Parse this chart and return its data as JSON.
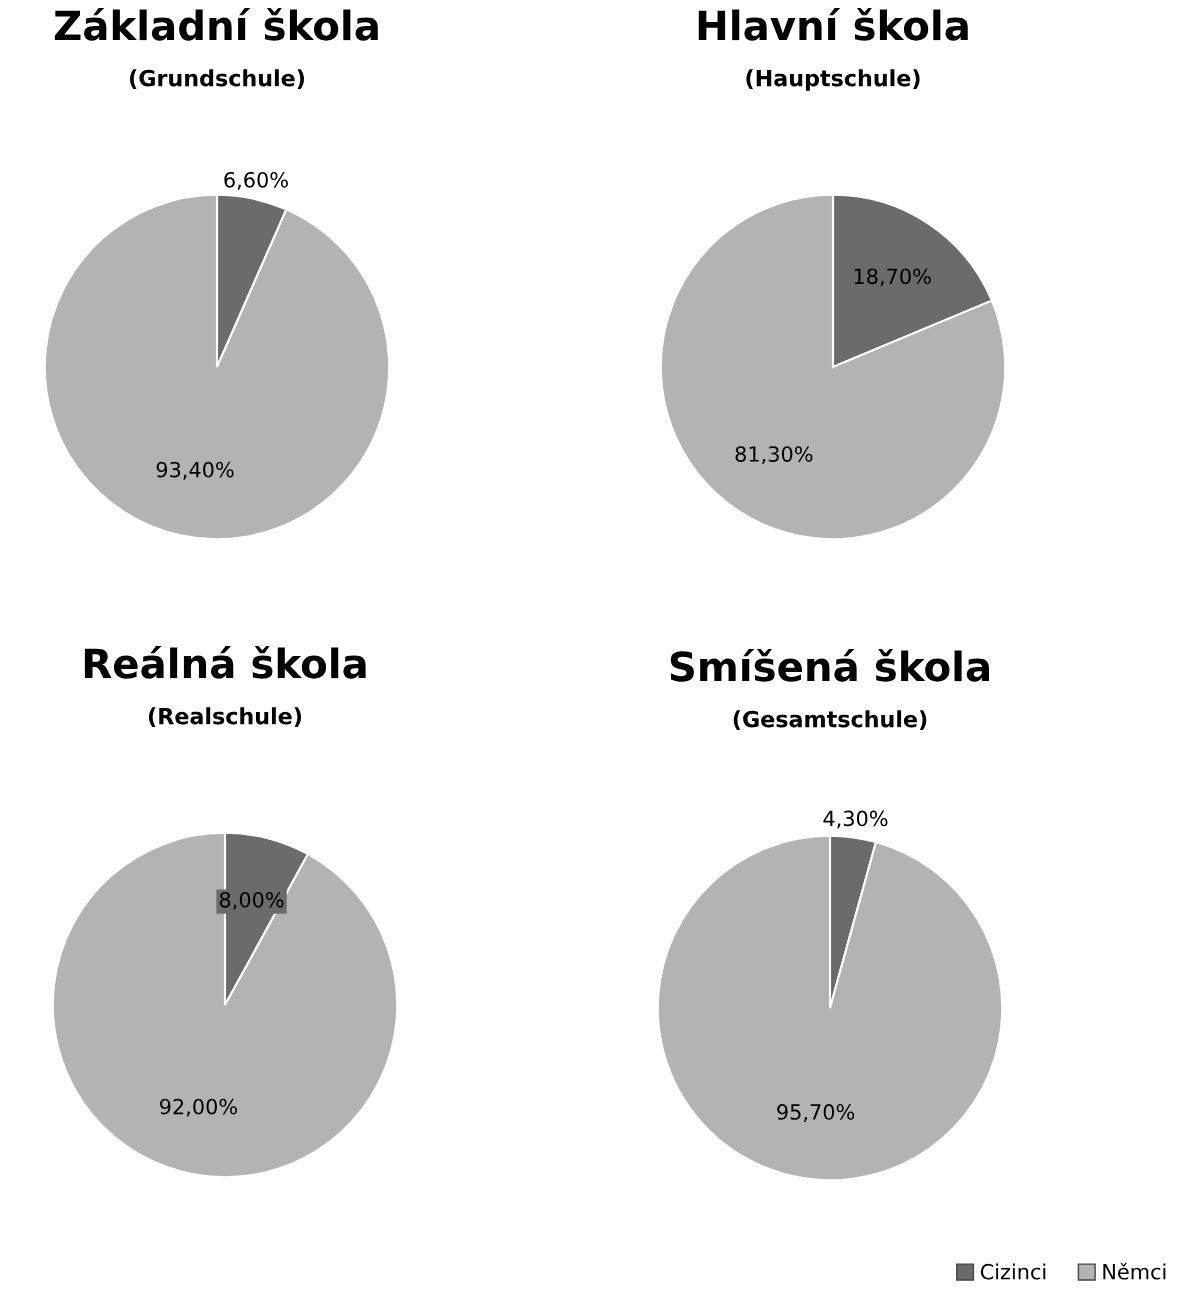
{
  "chart_data": [
    {
      "type": "pie",
      "title": "Základní škola",
      "subtitle": "(Grundschule)",
      "categories": [
        "Cizinci",
        "Němci"
      ],
      "values": [
        6.6,
        93.4
      ],
      "colors": [
        "#6b6b6b",
        "#b3b3b3"
      ],
      "value_labels": [
        "6,60%",
        "93,40%"
      ],
      "legend": "bottom right"
    },
    {
      "type": "pie",
      "title": "Hlavní škola",
      "subtitle": "(Hauptschule)",
      "categories": [
        null,
        null
      ],
      "values": [
        18.7,
        81.3
      ],
      "colors": [
        "#6b6b6b",
        "#b3b3b3"
      ],
      "value_labels": [
        "18,70%",
        "81,30%"
      ]
    },
    {
      "type": "pie",
      "title": "Reálná škola",
      "subtitle": "(Realschule)",
      "categories": [
        null,
        null
      ],
      "values": [
        8.0,
        92.0
      ],
      "colors": [
        "#6b6b6b",
        "#b3b3b3"
      ],
      "value_labels": [
        "8,00%",
        "92,00%"
      ]
    },
    {
      "type": "pie",
      "title": "Smíšená škola",
      "subtitle": "(Gesamtschule)",
      "categories": [
        null,
        null
      ],
      "values": [
        4.3,
        95.7
      ],
      "colors": [
        "#6b6b6b",
        "#b3b3b3"
      ],
      "value_labels": [
        "4,30%",
        "95,70%"
      ]
    }
  ]
}
